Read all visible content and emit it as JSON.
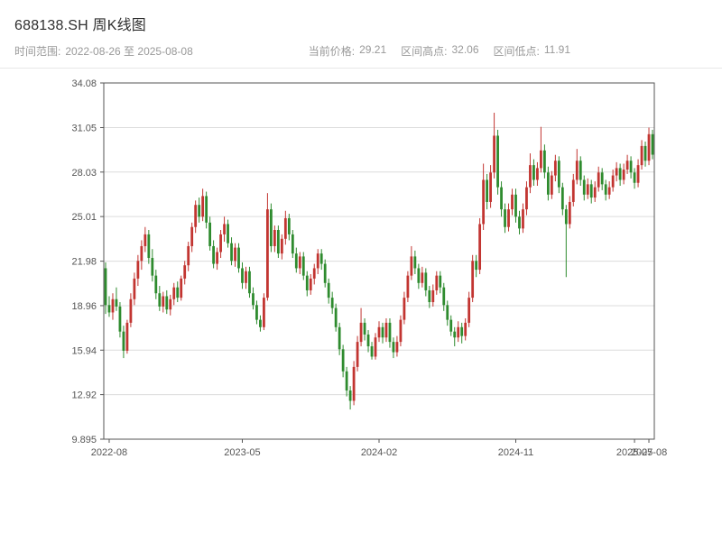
{
  "header": {
    "title": "688138.SH 周K线图",
    "subtitle_left": {
      "label": "时间范围:",
      "value": "2022-08-26 至 2025-08-08"
    },
    "stats": [
      {
        "label": "当前价格:",
        "value": "29.21"
      },
      {
        "label": "区间高点:",
        "value": "32.06"
      },
      {
        "label": "区间低点:",
        "value": "11.91"
      }
    ]
  },
  "chart_data": {
    "type": "candlestick",
    "title": "688138.SH 周K线图",
    "interval": "weekly",
    "x_range": [
      "2022-08-26",
      "2025-08-08"
    ],
    "current_price": 29.21,
    "range_high": 32.06,
    "range_low": 11.91,
    "ylim": [
      9.895,
      34.08
    ],
    "yticks": [
      9.895,
      12.92,
      15.94,
      18.96,
      21.98,
      25.01,
      28.03,
      31.05,
      34.08
    ],
    "xticks": [
      {
        "index": 1,
        "label": "2022-08"
      },
      {
        "index": 38,
        "label": "2023-05"
      },
      {
        "index": 76,
        "label": "2024-02"
      },
      {
        "index": 114,
        "label": "2024-11"
      },
      {
        "index": 147,
        "label": "2025-07"
      },
      {
        "index": 151,
        "label": "2025-08"
      }
    ],
    "grid": true,
    "colors": {
      "up": "#c23531",
      "down": "#2e8b2e",
      "grid": "#dcdcdc",
      "frame": "#555555"
    },
    "candles": [
      [
        21.5,
        21.9,
        18.4,
        19.0
      ],
      [
        19.0,
        19.6,
        18.2,
        18.5
      ],
      [
        18.5,
        19.8,
        18.0,
        19.4
      ],
      [
        19.4,
        20.2,
        18.6,
        18.9
      ],
      [
        18.9,
        19.2,
        16.8,
        17.2
      ],
      [
        17.2,
        17.6,
        15.4,
        15.9
      ],
      [
        15.9,
        18.0,
        15.7,
        17.8
      ],
      [
        17.8,
        19.8,
        17.5,
        19.4
      ],
      [
        19.4,
        21.2,
        19.0,
        20.8
      ],
      [
        20.8,
        22.4,
        20.3,
        22.0
      ],
      [
        22.0,
        23.4,
        21.4,
        23.0
      ],
      [
        23.0,
        24.3,
        22.6,
        23.8
      ],
      [
        23.8,
        24.1,
        21.8,
        22.2
      ],
      [
        22.2,
        22.8,
        20.6,
        21.0
      ],
      [
        21.0,
        21.4,
        19.4,
        19.8
      ],
      [
        19.8,
        20.3,
        18.6,
        18.9
      ],
      [
        18.9,
        19.9,
        18.5,
        19.6
      ],
      [
        19.6,
        20.0,
        18.4,
        18.7
      ],
      [
        18.7,
        19.7,
        18.3,
        19.4
      ],
      [
        19.4,
        20.5,
        19.0,
        20.2
      ],
      [
        20.2,
        20.6,
        19.2,
        19.5
      ],
      [
        19.5,
        21.0,
        19.3,
        20.8
      ],
      [
        20.8,
        22.0,
        20.4,
        21.7
      ],
      [
        21.7,
        23.3,
        21.3,
        23.0
      ],
      [
        23.0,
        24.6,
        22.6,
        24.3
      ],
      [
        24.3,
        26.1,
        23.9,
        25.8
      ],
      [
        25.8,
        26.3,
        24.6,
        25.0
      ],
      [
        25.0,
        26.9,
        24.7,
        26.4
      ],
      [
        26.4,
        26.7,
        24.2,
        24.6
      ],
      [
        24.6,
        25.0,
        22.7,
        23.0
      ],
      [
        23.0,
        23.4,
        21.5,
        21.8
      ],
      [
        21.8,
        22.9,
        21.4,
        22.6
      ],
      [
        22.6,
        24.1,
        22.2,
        23.8
      ],
      [
        23.8,
        25.0,
        23.3,
        24.5
      ],
      [
        24.5,
        24.8,
        22.9,
        23.2
      ],
      [
        23.2,
        23.6,
        21.7,
        22.0
      ],
      [
        22.0,
        23.2,
        21.6,
        22.9
      ],
      [
        22.9,
        23.2,
        21.2,
        21.5
      ],
      [
        21.5,
        21.9,
        20.1,
        20.5
      ],
      [
        20.5,
        21.6,
        20.1,
        21.3
      ],
      [
        21.3,
        21.6,
        19.5,
        19.8
      ],
      [
        19.8,
        20.2,
        18.7,
        19.0
      ],
      [
        19.0,
        19.3,
        17.7,
        18.0
      ],
      [
        18.0,
        18.3,
        17.2,
        17.5
      ],
      [
        17.5,
        19.8,
        17.3,
        19.5
      ],
      [
        19.5,
        26.6,
        19.3,
        25.5
      ],
      [
        25.5,
        25.9,
        22.6,
        23.0
      ],
      [
        23.0,
        24.4,
        22.6,
        24.1
      ],
      [
        24.1,
        24.4,
        22.2,
        22.5
      ],
      [
        22.5,
        23.8,
        22.1,
        23.5
      ],
      [
        23.5,
        25.4,
        23.1,
        24.9
      ],
      [
        24.9,
        25.2,
        23.4,
        23.8
      ],
      [
        23.8,
        24.1,
        22.2,
        22.5
      ],
      [
        22.5,
        22.9,
        21.2,
        21.5
      ],
      [
        21.5,
        22.6,
        21.1,
        22.3
      ],
      [
        22.3,
        22.6,
        20.7,
        21.0
      ],
      [
        21.0,
        21.3,
        19.6,
        20.0
      ],
      [
        20.0,
        21.1,
        19.7,
        20.8
      ],
      [
        20.8,
        21.8,
        20.4,
        21.5
      ],
      [
        21.5,
        22.8,
        21.1,
        22.5
      ],
      [
        22.5,
        22.8,
        21.4,
        21.8
      ],
      [
        21.8,
        22.1,
        20.2,
        20.5
      ],
      [
        20.5,
        20.8,
        19.1,
        19.5
      ],
      [
        19.5,
        19.9,
        18.4,
        18.8
      ],
      [
        18.8,
        19.1,
        17.2,
        17.5
      ],
      [
        17.5,
        17.8,
        15.6,
        16.0
      ],
      [
        16.0,
        16.3,
        14.1,
        14.5
      ],
      [
        14.5,
        14.8,
        12.8,
        13.2
      ],
      [
        13.2,
        13.5,
        11.91,
        12.5
      ],
      [
        12.5,
        15.2,
        12.2,
        14.8
      ],
      [
        14.8,
        16.9,
        14.5,
        16.5
      ],
      [
        16.5,
        18.8,
        16.2,
        17.8
      ],
      [
        17.8,
        18.1,
        16.6,
        17.0
      ],
      [
        17.0,
        17.3,
        15.8,
        16.2
      ],
      [
        16.2,
        16.5,
        15.3,
        15.5
      ],
      [
        15.5,
        17.1,
        15.3,
        16.8
      ],
      [
        16.8,
        17.9,
        16.5,
        17.5
      ],
      [
        17.5,
        17.8,
        16.4,
        16.8
      ],
      [
        16.8,
        18.1,
        16.5,
        17.8
      ],
      [
        17.8,
        18.1,
        16.1,
        16.5
      ],
      [
        16.5,
        16.8,
        15.4,
        15.8
      ],
      [
        15.8,
        16.9,
        15.5,
        16.5
      ],
      [
        16.5,
        18.3,
        16.2,
        18.0
      ],
      [
        18.0,
        19.9,
        17.7,
        19.5
      ],
      [
        19.5,
        21.3,
        19.2,
        21.0
      ],
      [
        21.0,
        23.0,
        20.7,
        22.3
      ],
      [
        22.3,
        22.7,
        21.1,
        21.5
      ],
      [
        21.5,
        21.8,
        20.1,
        20.5
      ],
      [
        20.5,
        21.6,
        20.2,
        21.2
      ],
      [
        21.2,
        21.5,
        19.6,
        20.0
      ],
      [
        20.0,
        20.3,
        18.8,
        19.2
      ],
      [
        19.2,
        20.4,
        18.9,
        20.0
      ],
      [
        20.0,
        21.3,
        19.7,
        21.0
      ],
      [
        21.0,
        21.3,
        19.8,
        20.2
      ],
      [
        20.2,
        20.5,
        18.6,
        19.0
      ],
      [
        19.0,
        19.3,
        17.6,
        18.0
      ],
      [
        18.0,
        18.3,
        16.9,
        17.2
      ],
      [
        17.2,
        17.5,
        16.2,
        16.8
      ],
      [
        16.8,
        17.9,
        16.5,
        17.5
      ],
      [
        17.5,
        17.8,
        16.4,
        16.9
      ],
      [
        16.9,
        18.1,
        16.6,
        17.8
      ],
      [
        17.8,
        19.9,
        17.5,
        19.5
      ],
      [
        19.5,
        22.4,
        19.2,
        22.0
      ],
      [
        22.0,
        22.4,
        20.9,
        21.4
      ],
      [
        21.4,
        24.9,
        21.1,
        24.5
      ],
      [
        24.5,
        28.6,
        24.1,
        27.5
      ],
      [
        27.5,
        27.9,
        25.5,
        26.0
      ],
      [
        26.0,
        28.5,
        25.6,
        28.0
      ],
      [
        28.0,
        32.06,
        27.6,
        30.5
      ],
      [
        30.5,
        30.9,
        26.5,
        27.0
      ],
      [
        27.0,
        27.4,
        25.0,
        25.5
      ],
      [
        25.5,
        25.9,
        23.9,
        24.3
      ],
      [
        24.3,
        25.9,
        24.0,
        25.5
      ],
      [
        25.5,
        26.9,
        25.1,
        26.5
      ],
      [
        26.5,
        26.9,
        24.6,
        25.0
      ],
      [
        25.0,
        25.4,
        23.8,
        24.2
      ],
      [
        24.2,
        25.9,
        23.9,
        25.5
      ],
      [
        25.5,
        27.4,
        25.1,
        27.0
      ],
      [
        27.0,
        29.3,
        26.6,
        28.5
      ],
      [
        28.5,
        28.9,
        27.1,
        27.5
      ],
      [
        27.5,
        28.7,
        27.1,
        28.3
      ],
      [
        28.3,
        31.1,
        28.0,
        29.5
      ],
      [
        29.5,
        29.9,
        27.6,
        28.0
      ],
      [
        28.0,
        28.4,
        26.1,
        26.5
      ],
      [
        26.5,
        28.1,
        26.2,
        27.8
      ],
      [
        27.8,
        29.2,
        27.4,
        28.8
      ],
      [
        28.8,
        29.1,
        26.6,
        27.0
      ],
      [
        27.0,
        27.3,
        25.1,
        25.5
      ],
      [
        25.5,
        25.8,
        20.9,
        24.5
      ],
      [
        24.5,
        26.4,
        24.2,
        26.0
      ],
      [
        26.0,
        27.9,
        25.7,
        27.5
      ],
      [
        27.5,
        29.6,
        27.2,
        28.8
      ],
      [
        28.8,
        29.1,
        27.1,
        27.5
      ],
      [
        27.5,
        27.8,
        26.1,
        26.5
      ],
      [
        26.5,
        27.6,
        26.2,
        27.2
      ],
      [
        27.2,
        27.5,
        25.9,
        26.3
      ],
      [
        26.3,
        27.4,
        26.0,
        27.0
      ],
      [
        27.0,
        28.4,
        26.7,
        28.0
      ],
      [
        28.0,
        28.3,
        26.8,
        27.2
      ],
      [
        27.2,
        27.5,
        26.1,
        26.5
      ],
      [
        26.5,
        27.4,
        26.2,
        27.0
      ],
      [
        27.0,
        28.2,
        26.7,
        27.8
      ],
      [
        27.8,
        28.7,
        27.4,
        28.3
      ],
      [
        28.3,
        28.6,
        27.1,
        27.5
      ],
      [
        27.5,
        28.6,
        27.2,
        28.2
      ],
      [
        28.2,
        29.2,
        27.9,
        28.8
      ],
      [
        28.8,
        29.1,
        27.6,
        28.0
      ],
      [
        28.0,
        28.3,
        26.9,
        27.3
      ],
      [
        27.3,
        28.9,
        27.0,
        28.5
      ],
      [
        28.5,
        30.2,
        28.2,
        29.8
      ],
      [
        29.8,
        30.1,
        28.4,
        28.8
      ],
      [
        28.8,
        31.05,
        28.5,
        30.6
      ],
      [
        30.6,
        30.9,
        28.9,
        29.21
      ]
    ]
  }
}
